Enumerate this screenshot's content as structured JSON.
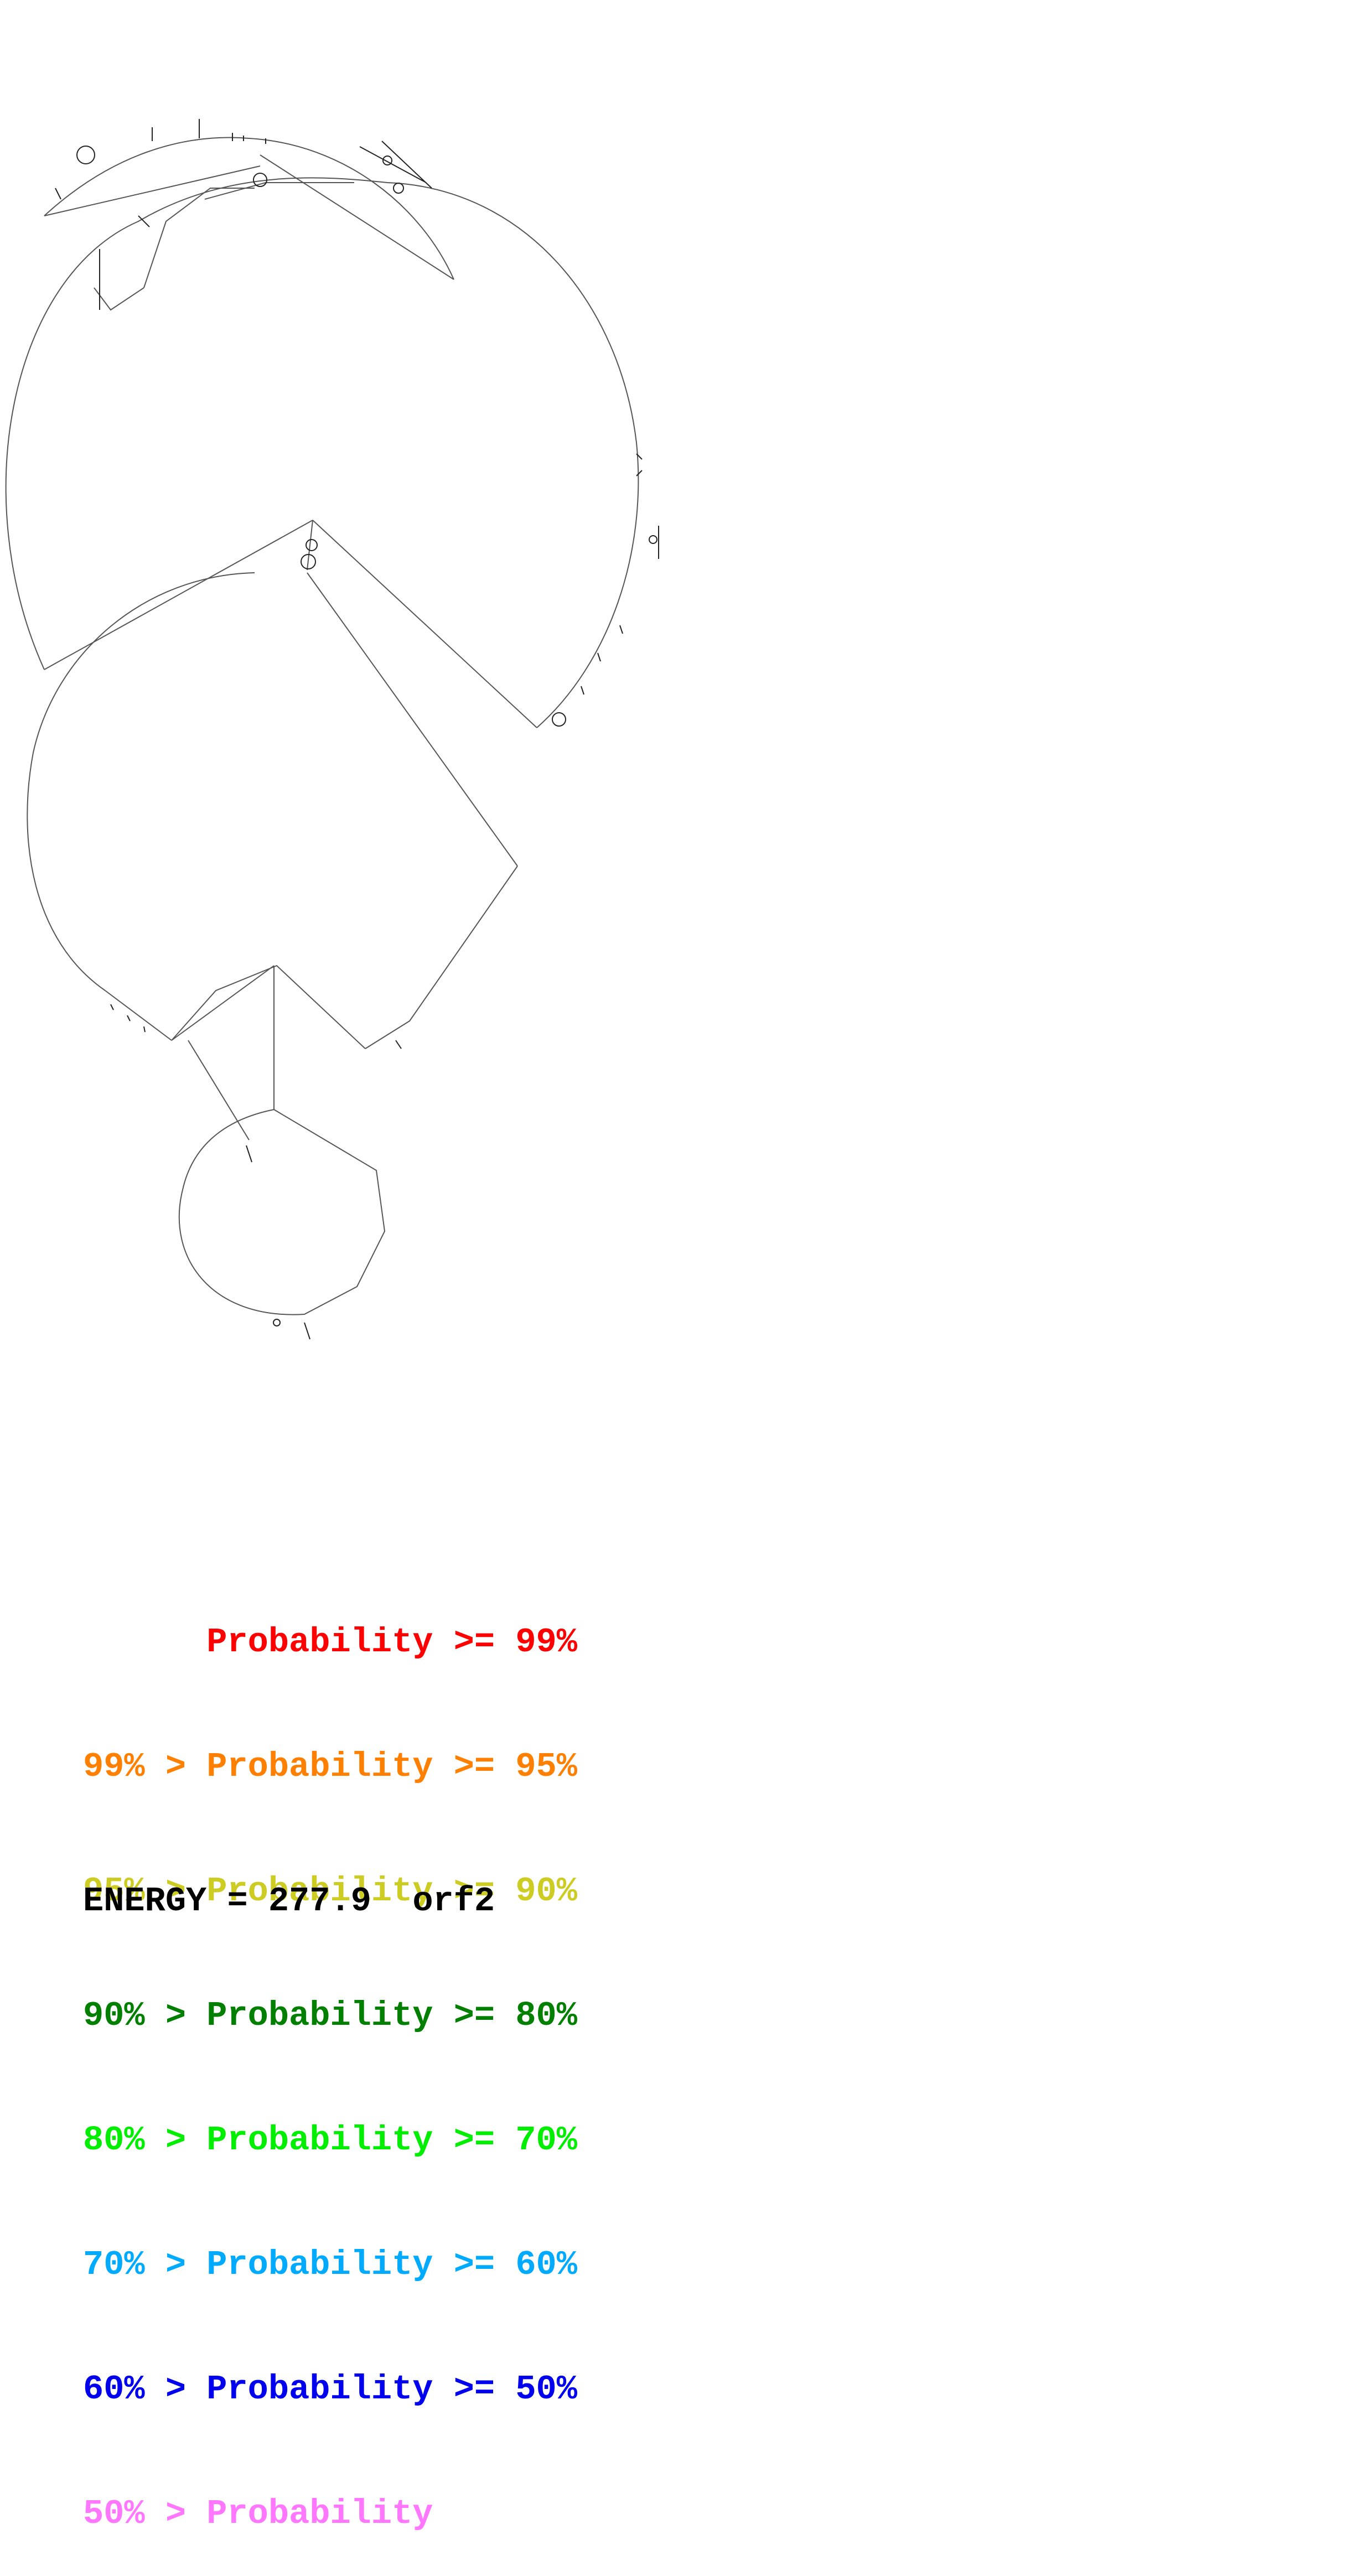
{
  "legend": {
    "rows": [
      {
        "text": "      Probability >= 99%",
        "color": "#ff0000"
      },
      {
        "text": "99% > Probability >= 95%",
        "color": "#ff7f00"
      },
      {
        "text": "95% > Probability >= 90%",
        "color": "#cccc22"
      },
      {
        "text": "90% > Probability >= 80%",
        "color": "#007f00"
      },
      {
        "text": "80% > Probability >= 70%",
        "color": "#00ee00"
      },
      {
        "text": "70% > Probability >= 60%",
        "color": "#00aaff"
      },
      {
        "text": "60% > Probability >= 50%",
        "color": "#0000ee"
      },
      {
        "text": "50% > Probability",
        "color": "#ff77ff"
      }
    ]
  },
  "footer": {
    "energy_label": "ENERGY = 277.9",
    "sequence_name": "orf2"
  },
  "structure": {
    "stroke_color": "#555555"
  }
}
